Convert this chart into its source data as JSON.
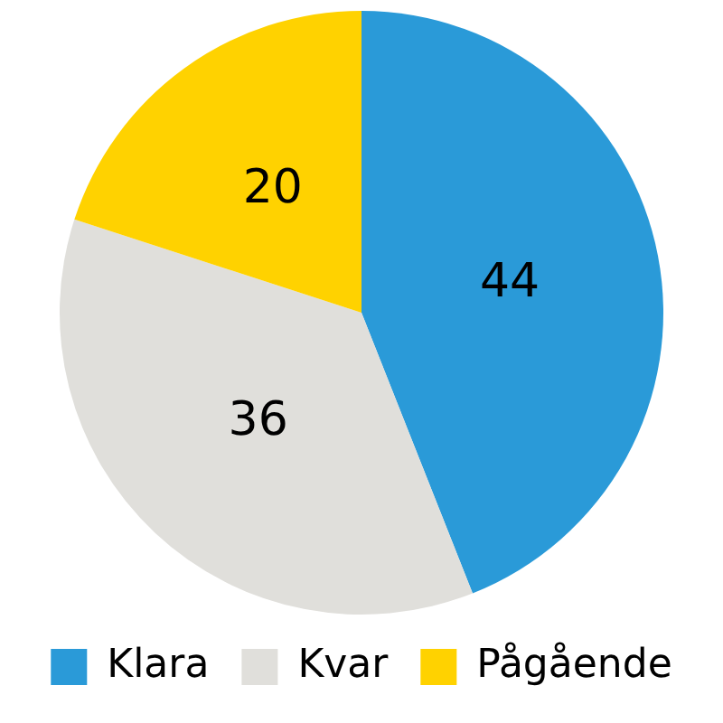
{
  "chart_data": {
    "type": "pie",
    "categories": [
      "Klara",
      "Kvar",
      "Pågående"
    ],
    "values": [
      44,
      36,
      20
    ],
    "colors": [
      "#2a9ad8",
      "#e0dfdb",
      "#ffd200"
    ],
    "data_labels": true,
    "legend": "bottom"
  }
}
